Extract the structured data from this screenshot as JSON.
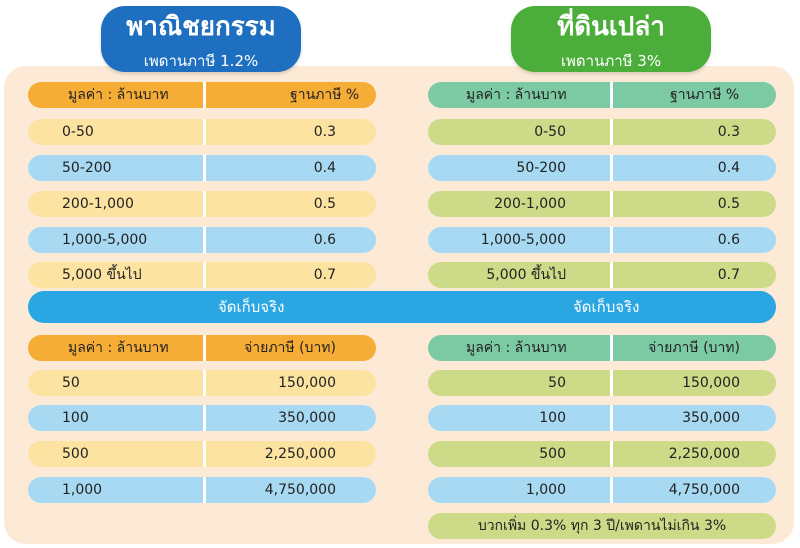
{
  "commercial": {
    "title": "พาณิชยกรรม",
    "ceiling": "เพดานภาษี 1.2%",
    "rate_table": {
      "headers": [
        "มูลค่า : ล้านบาท",
        "ฐานภาษี %"
      ],
      "rows": [
        {
          "range": "0-50",
          "rate": "0.3"
        },
        {
          "range": "50-200",
          "rate": "0.4"
        },
        {
          "range": "200-1,000",
          "rate": "0.5"
        },
        {
          "range": "1,000-5,000",
          "rate": "0.6"
        },
        {
          "range": "5,000 ขึ้นไป",
          "rate": "0.7"
        }
      ]
    },
    "actual_label": "จัดเก็บจริง",
    "actual_table": {
      "headers": [
        "มูลค่า : ล้านบาท",
        "จ่ายภาษี (บาท)"
      ],
      "rows": [
        {
          "value": "50",
          "tax": "150,000"
        },
        {
          "value": "100",
          "tax": "350,000"
        },
        {
          "value": "500",
          "tax": "2,250,000"
        },
        {
          "value": "1,000",
          "tax": "4,750,000"
        }
      ]
    }
  },
  "vacant_land": {
    "title": "ที่ดินเปล่า",
    "ceiling": "เพดานภาษี 3%",
    "rate_table": {
      "headers": [
        "มูลค่า : ล้านบาท",
        "ฐานภาษี %"
      ],
      "rows": [
        {
          "range": "0-50",
          "rate": "0.3"
        },
        {
          "range": "50-200",
          "rate": "0.4"
        },
        {
          "range": "200-1,000",
          "rate": "0.5"
        },
        {
          "range": "1,000-5,000",
          "rate": "0.6"
        },
        {
          "range": "5,000 ขึ้นไป",
          "rate": "0.7"
        }
      ]
    },
    "actual_label": "จัดเก็บจริง",
    "actual_table": {
      "headers": [
        "มูลค่า : ล้านบาท",
        "จ่ายภาษี (บาท)"
      ],
      "rows": [
        {
          "value": "50",
          "tax": "150,000"
        },
        {
          "value": "100",
          "tax": "350,000"
        },
        {
          "value": "500",
          "tax": "2,250,000"
        },
        {
          "value": "1,000",
          "tax": "4,750,000"
        }
      ]
    },
    "note": "บวกเพิ่ม 0.3% ทุก 3 ปี/เพดานไม่เกิน 3%"
  },
  "colors": {
    "commercial_tab": "#1e6fc0",
    "vacant_tab": "#4cae3a",
    "band": "#2aa6e2",
    "panel": "#fcead7"
  }
}
